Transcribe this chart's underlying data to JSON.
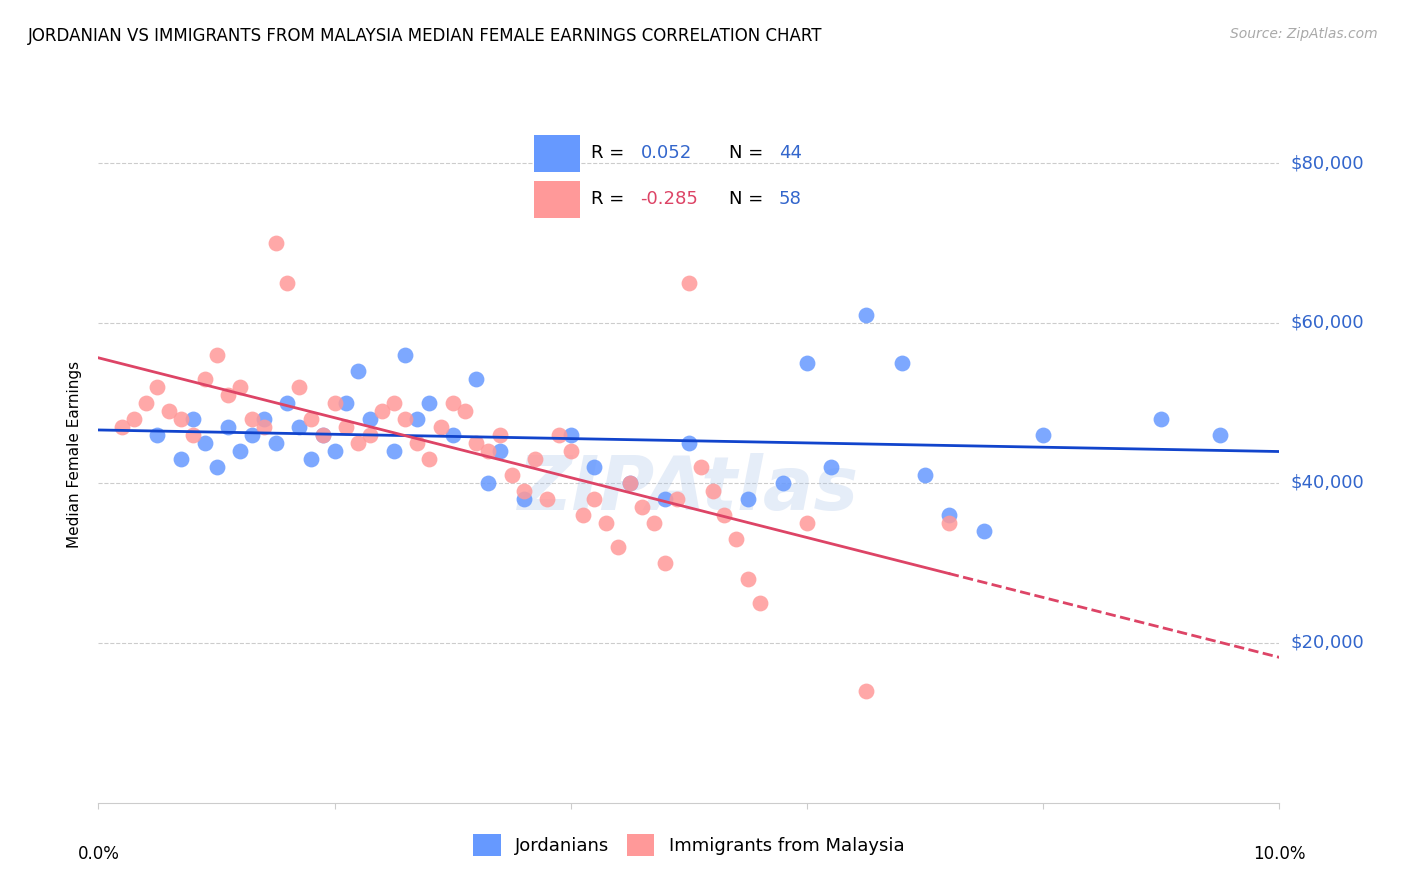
{
  "title": "JORDANIAN VS IMMIGRANTS FROM MALAYSIA MEDIAN FEMALE EARNINGS CORRELATION CHART",
  "source": "Source: ZipAtlas.com",
  "ylabel": "Median Female Earnings",
  "yticks": [
    0,
    20000,
    40000,
    60000,
    80000
  ],
  "ytick_labels": [
    "",
    "$20,000",
    "$40,000",
    "$60,000",
    "$80,000"
  ],
  "xlim": [
    0.0,
    0.1
  ],
  "ylim": [
    0,
    87000
  ],
  "R_blue": 0.052,
  "N_blue": 44,
  "R_pink": -0.285,
  "N_pink": 58,
  "blue_color": "#6699ff",
  "pink_color": "#ff9999",
  "trend_blue": "#1144cc",
  "trend_pink": "#dd4466",
  "watermark": "ZIPAtlas",
  "legend_label_blue": "Jordanians",
  "legend_label_pink": "Immigrants from Malaysia",
  "blue_scatter_x": [
    0.005,
    0.007,
    0.008,
    0.009,
    0.01,
    0.011,
    0.012,
    0.013,
    0.014,
    0.015,
    0.016,
    0.017,
    0.018,
    0.019,
    0.02,
    0.021,
    0.022,
    0.023,
    0.025,
    0.026,
    0.027,
    0.028,
    0.03,
    0.032,
    0.033,
    0.034,
    0.036,
    0.04,
    0.042,
    0.045,
    0.048,
    0.05,
    0.055,
    0.058,
    0.06,
    0.062,
    0.065,
    0.068,
    0.07,
    0.072,
    0.075,
    0.08,
    0.09,
    0.095
  ],
  "blue_scatter_y": [
    46000,
    43000,
    48000,
    45000,
    42000,
    47000,
    44000,
    46000,
    48000,
    45000,
    50000,
    47000,
    43000,
    46000,
    44000,
    50000,
    54000,
    48000,
    44000,
    56000,
    48000,
    50000,
    46000,
    53000,
    40000,
    44000,
    38000,
    46000,
    42000,
    40000,
    38000,
    45000,
    38000,
    40000,
    55000,
    42000,
    61000,
    55000,
    41000,
    36000,
    34000,
    46000,
    48000,
    46000
  ],
  "pink_scatter_x": [
    0.002,
    0.003,
    0.004,
    0.005,
    0.006,
    0.007,
    0.008,
    0.009,
    0.01,
    0.011,
    0.012,
    0.013,
    0.014,
    0.015,
    0.016,
    0.017,
    0.018,
    0.019,
    0.02,
    0.021,
    0.022,
    0.023,
    0.024,
    0.025,
    0.026,
    0.027,
    0.028,
    0.029,
    0.03,
    0.031,
    0.032,
    0.033,
    0.034,
    0.035,
    0.036,
    0.037,
    0.038,
    0.039,
    0.04,
    0.041,
    0.042,
    0.043,
    0.044,
    0.045,
    0.046,
    0.047,
    0.048,
    0.049,
    0.05,
    0.051,
    0.052,
    0.053,
    0.054,
    0.055,
    0.056,
    0.06,
    0.065,
    0.072
  ],
  "pink_scatter_y": [
    47000,
    48000,
    50000,
    52000,
    49000,
    48000,
    46000,
    53000,
    56000,
    51000,
    52000,
    48000,
    47000,
    70000,
    65000,
    52000,
    48000,
    46000,
    50000,
    47000,
    45000,
    46000,
    49000,
    50000,
    48000,
    45000,
    43000,
    47000,
    50000,
    49000,
    45000,
    44000,
    46000,
    41000,
    39000,
    43000,
    38000,
    46000,
    44000,
    36000,
    38000,
    35000,
    32000,
    40000,
    37000,
    35000,
    30000,
    38000,
    65000,
    42000,
    39000,
    36000,
    33000,
    28000,
    25000,
    35000,
    14000,
    35000
  ]
}
